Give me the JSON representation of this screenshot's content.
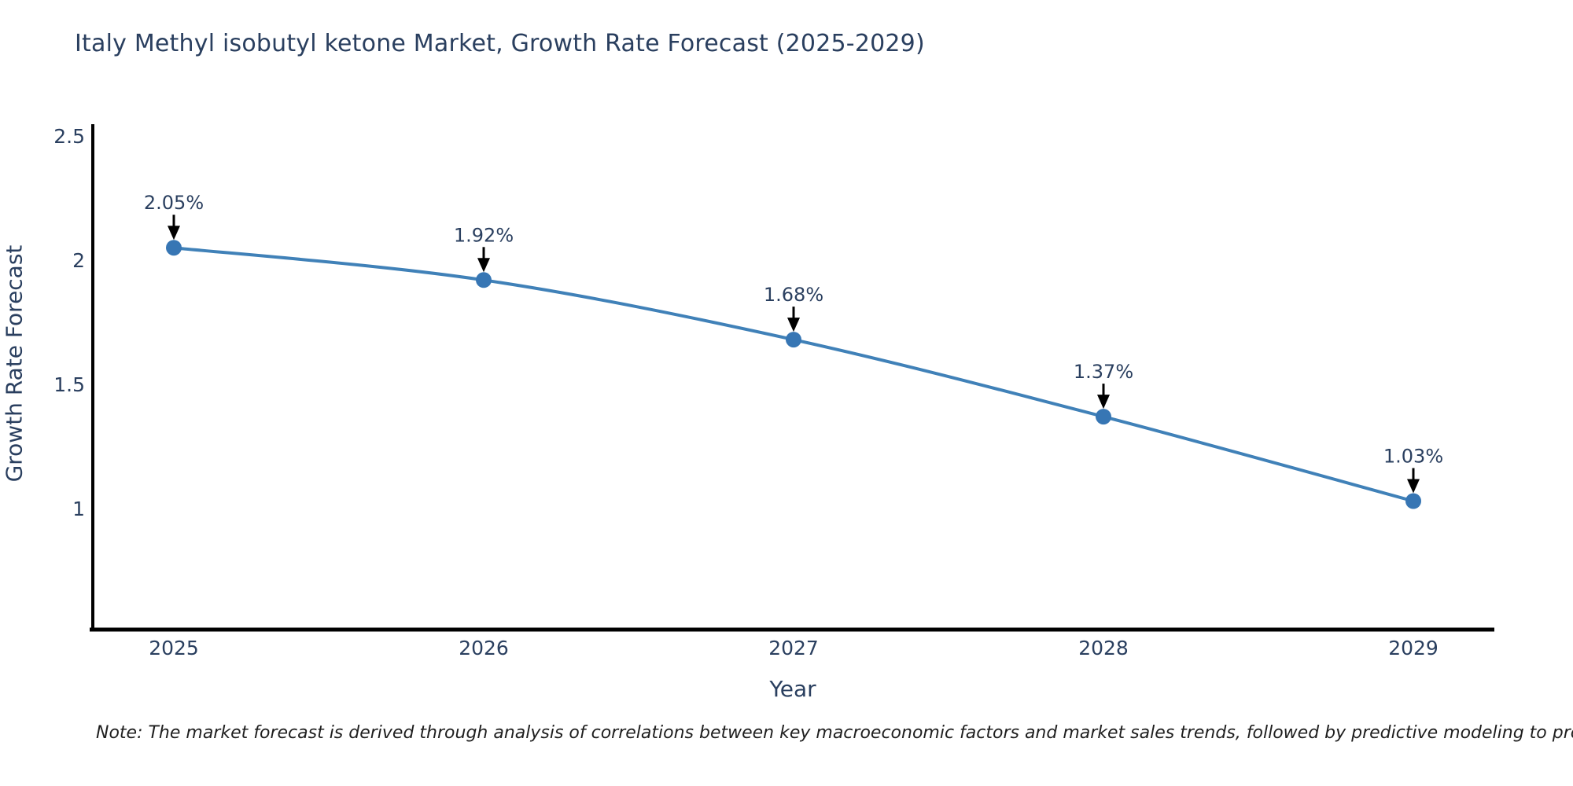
{
  "title": "Italy Methyl isobutyl ketone Market, Growth Rate Forecast (2025-2029)",
  "note": "Note: The market forecast is derived through analysis of correlations between key macroeconomic factors and market sales trends, followed by predictive modeling to project future sales",
  "chart_data": {
    "type": "line",
    "title": "Italy Methyl isobutyl ketone Market, Growth Rate Forecast (2025-2029)",
    "xlabel": "Year",
    "ylabel": "Growth Rate Forecast",
    "x": [
      2025,
      2026,
      2027,
      2028,
      2029
    ],
    "series": [
      {
        "name": "Growth Rate Forecast",
        "values": [
          2.05,
          1.92,
          1.68,
          1.37,
          1.03
        ]
      }
    ],
    "point_labels": [
      "2.05%",
      "1.92%",
      "1.68%",
      "1.37%",
      "1.03%"
    ],
    "yticks": [
      1,
      1.5,
      2,
      2.5
    ],
    "ylim": [
      0.51,
      2.55
    ],
    "grid": false,
    "legend": "none",
    "colors": {
      "line": "#4081b8",
      "marker": "#3776b4",
      "annotation_arrow": "#000000",
      "axis_spine": "#000000",
      "text": "#2a3f5f"
    }
  }
}
